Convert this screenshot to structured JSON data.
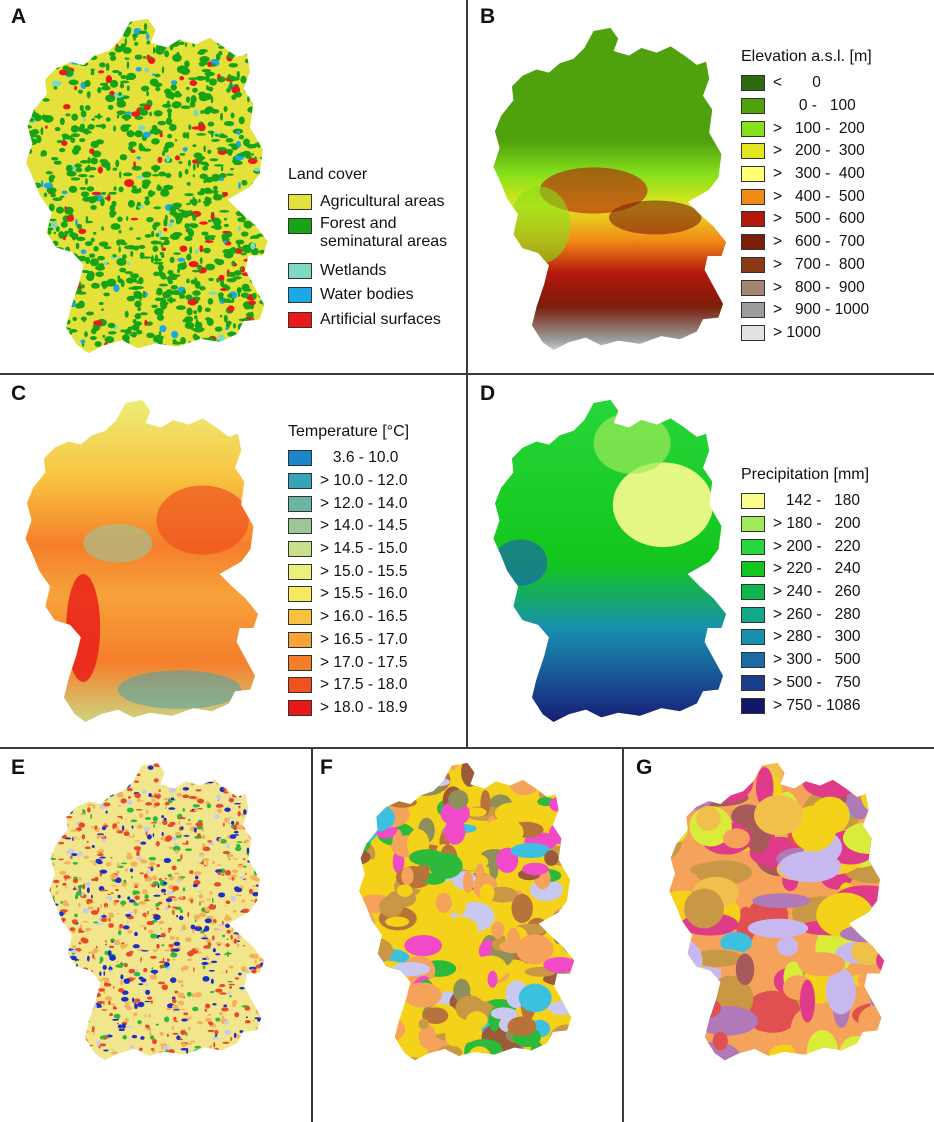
{
  "panels": {
    "A": {
      "label": "A",
      "legend": {
        "title": "Land cover",
        "items": [
          {
            "label": "Agricultural areas",
            "color": "#e4e13a"
          },
          {
            "label": "Forest and\nseminatural areas",
            "color": "#17a317"
          },
          {
            "label": "Wetlands",
            "color": "#7fd8c2"
          },
          {
            "label": "Water bodies",
            "color": "#1aa9e6"
          },
          {
            "label": "Artificial surfaces",
            "color": "#e81a1a"
          }
        ]
      },
      "map_colors": [
        "#e4e13a",
        "#17a317",
        "#7fd8c2",
        "#1aa9e6",
        "#e81a1a"
      ]
    },
    "B": {
      "label": "B",
      "legend": {
        "title": "Elevation a.s.l. [m]",
        "items": [
          {
            "label": "<       0",
            "color": "#2d6a12"
          },
          {
            "label": "      0 -   100",
            "color": "#4fa10e"
          },
          {
            "label": ">   100 -  200",
            "color": "#86e01a"
          },
          {
            "label": ">   200 -  300",
            "color": "#e3e51e"
          },
          {
            "label": ">   300 -  400",
            "color": "#ffff73"
          },
          {
            "label": ">   400 -  500",
            "color": "#f28a17"
          },
          {
            "label": ">   500 -  600",
            "color": "#b3170c"
          },
          {
            "label": ">   600 -  700",
            "color": "#7a1e0a"
          },
          {
            "label": ">   700 -  800",
            "color": "#8a3b16"
          },
          {
            "label": ">   800 -  900",
            "color": "#a68474"
          },
          {
            "label": ">   900 - 1000",
            "color": "#9c9c9c"
          },
          {
            "label": "> 1000",
            "color": "#e2e2e2"
          }
        ]
      }
    },
    "C": {
      "label": "C",
      "legend": {
        "title": "Temperature [°C]",
        "items": [
          {
            "label": "   3.6 - 10.0",
            "color": "#1a86c9"
          },
          {
            "label": "> 10.0 - 12.0",
            "color": "#35a4b8"
          },
          {
            "label": "> 12.0 - 14.0",
            "color": "#6bb3a3"
          },
          {
            "label": "> 14.0 - 14.5",
            "color": "#9cc79a"
          },
          {
            "label": "> 14.5 - 15.0",
            "color": "#c8de8a"
          },
          {
            "label": "> 15.0 - 15.5",
            "color": "#ecef7a"
          },
          {
            "label": "> 15.5 - 16.0",
            "color": "#f7e85e"
          },
          {
            "label": "> 16.0 - 16.5",
            "color": "#f8c23f"
          },
          {
            "label": "> 16.5 - 17.0",
            "color": "#f6a33a"
          },
          {
            "label": "> 17.0 - 17.5",
            "color": "#f57e2b"
          },
          {
            "label": "> 17.5 - 18.0",
            "color": "#f0521f"
          },
          {
            "label": "> 18.0 - 18.9",
            "color": "#e81818"
          }
        ]
      }
    },
    "D": {
      "label": "D",
      "legend": {
        "title": "Precipitation [mm]",
        "items": [
          {
            "label": "   142 -   180",
            "color": "#fbfb8e"
          },
          {
            "label": "> 180 -   200",
            "color": "#9eea5a"
          },
          {
            "label": "> 200 -   220",
            "color": "#27d63a"
          },
          {
            "label": "> 220 -   240",
            "color": "#13c61d"
          },
          {
            "label": "> 240 -   260",
            "color": "#10b54d"
          },
          {
            "label": "> 260 -   280",
            "color": "#13a88a"
          },
          {
            "label": "> 280 -   300",
            "color": "#1790ae"
          },
          {
            "label": "> 300 -   500",
            "color": "#1a6aa8"
          },
          {
            "label": "> 500 -   750",
            "color": "#193e8c"
          },
          {
            "label": "> 750 - 1086",
            "color": "#14166a"
          }
        ]
      }
    },
    "E": {
      "label": "E",
      "map_colors": [
        "#f2e68c",
        "#f2b15a",
        "#e94a2a",
        "#1c2fc8",
        "#2db93a",
        "#c8c8f0"
      ]
    },
    "F": {
      "label": "F",
      "map_colors": [
        "#f5d21a",
        "#f5a35a",
        "#c99845",
        "#b8733a",
        "#8f8f5a",
        "#f04ac8",
        "#3cc0e0",
        "#2db93a",
        "#c8c8f0",
        "#9b5a3a"
      ]
    },
    "G": {
      "label": "G",
      "map_colors": [
        "#f5a35a",
        "#f5d21a",
        "#d9ec3a",
        "#c99845",
        "#e03a8a",
        "#b07ab8",
        "#a85a5a",
        "#3cc0e0",
        "#c8b8f0",
        "#f0c04a",
        "#e05050"
      ]
    }
  }
}
